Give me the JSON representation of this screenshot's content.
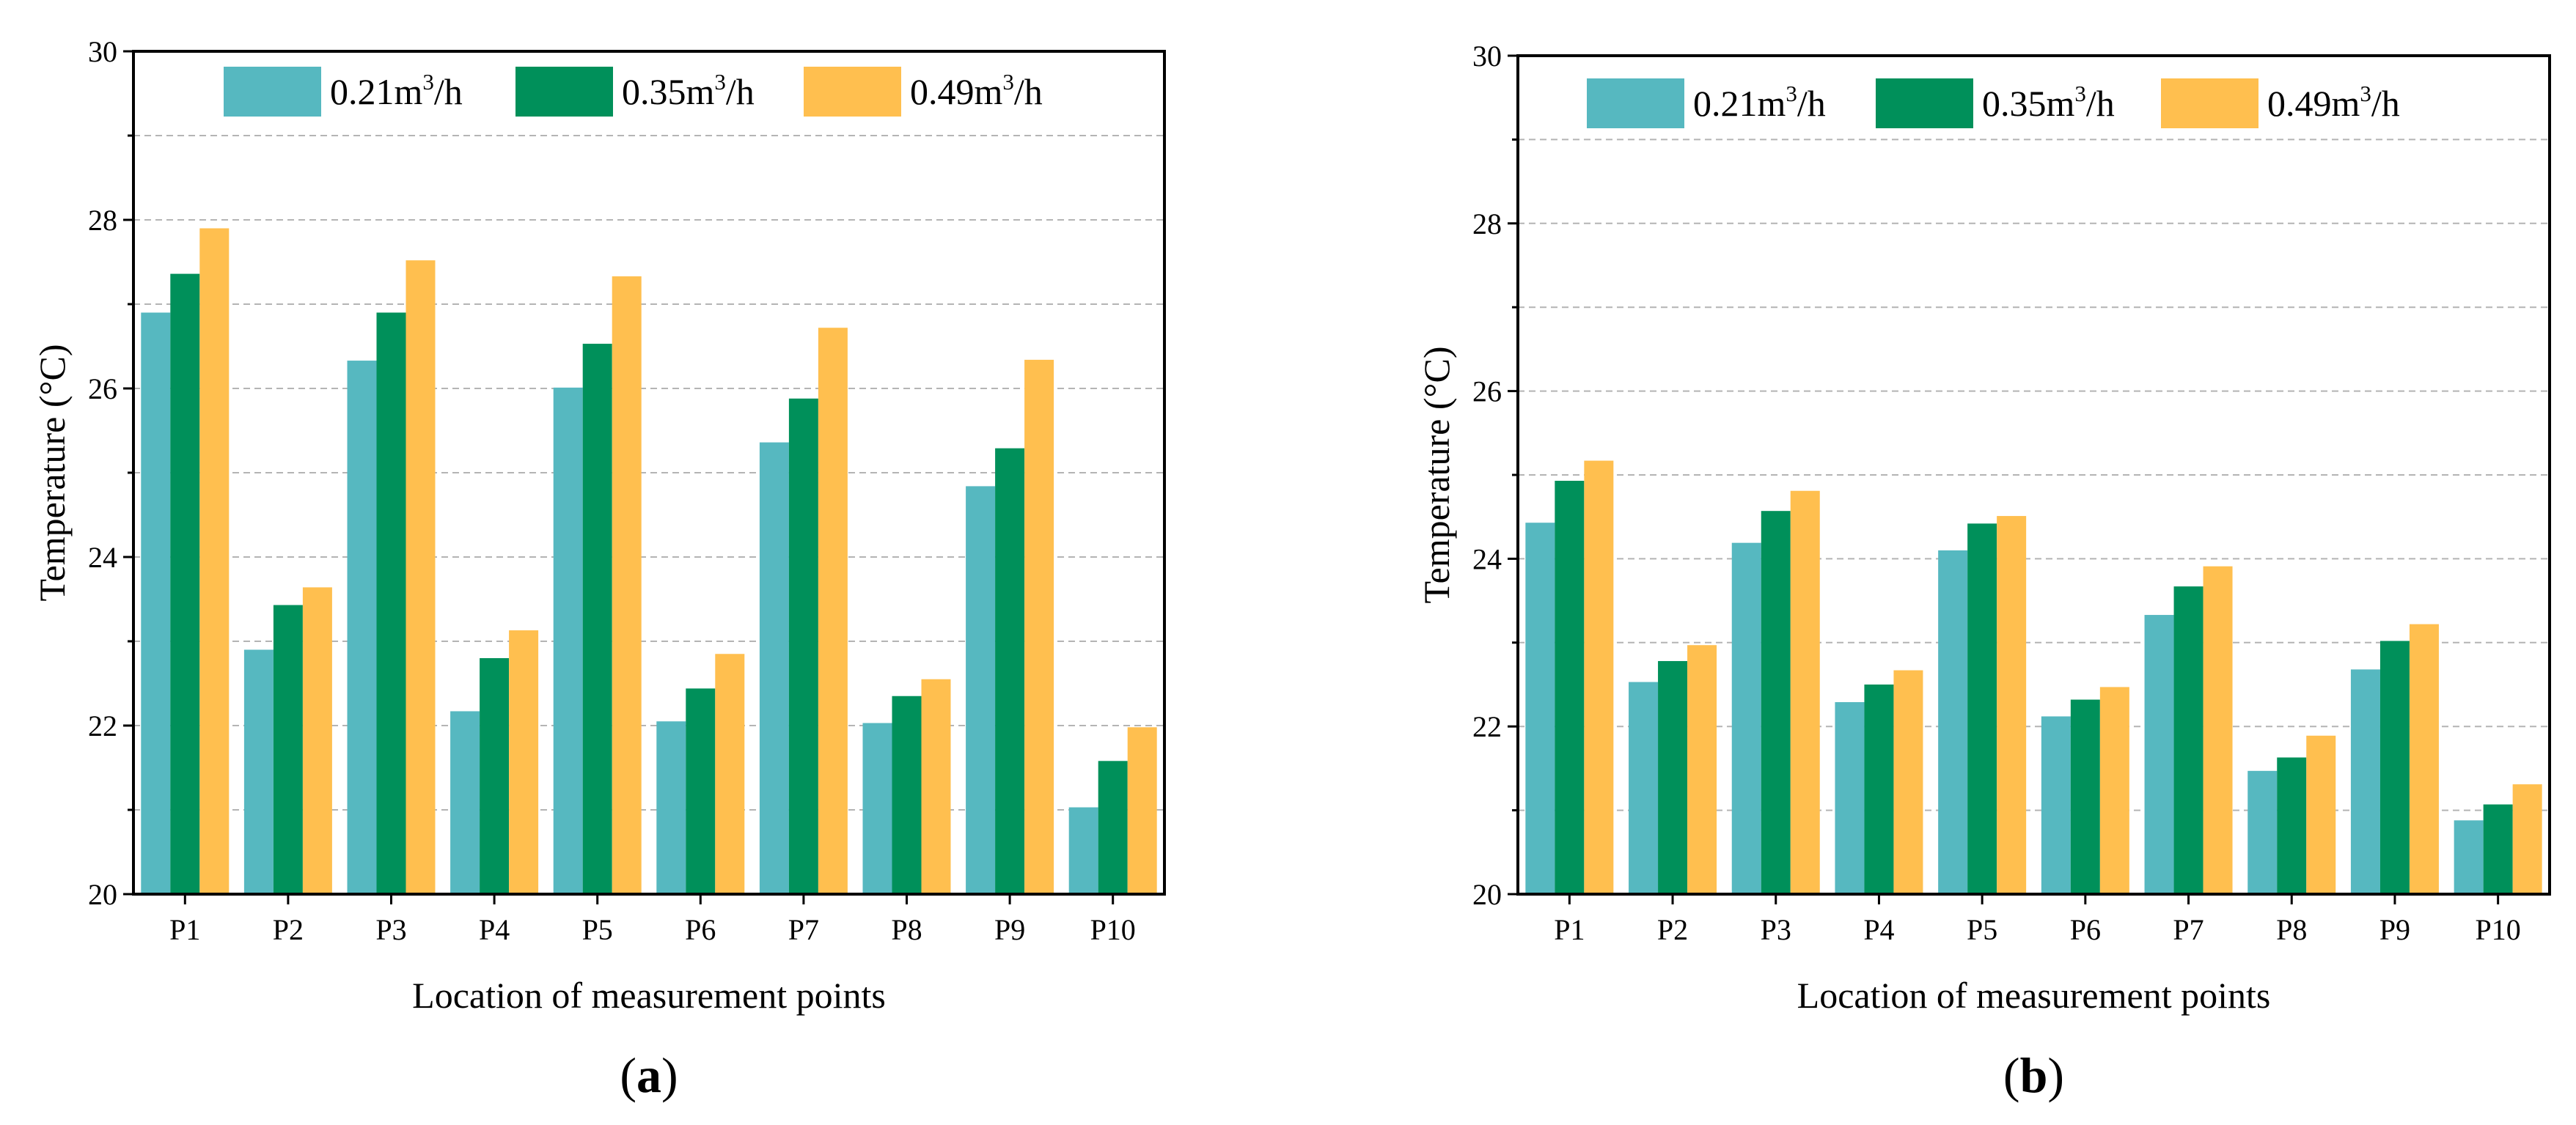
{
  "chart_data": [
    {
      "type": "bar",
      "panel_label": "(a)",
      "panel_letter": "a",
      "xlabel": "Location of measurement points",
      "ylabel": "Temperature (°C)",
      "ylim": [
        20,
        30
      ],
      "yticks": [
        20,
        22,
        24,
        26,
        28,
        30
      ],
      "grid": true,
      "legend_position": "top",
      "categories": [
        "P1",
        "P2",
        "P3",
        "P4",
        "P5",
        "P6",
        "P7",
        "P8",
        "P9",
        "P10"
      ],
      "series": [
        {
          "name": "0.21m3/h",
          "label_main": "0.21m",
          "label_sup": "3",
          "label_tail": "/h",
          "color": "#56B8C0",
          "values": [
            26.9,
            22.9,
            26.33,
            22.17,
            26.01,
            22.05,
            25.36,
            22.03,
            24.84,
            21.03
          ]
        },
        {
          "name": "0.35m3/h",
          "label_main": "0.35m",
          "label_sup": "3",
          "label_tail": "/h",
          "color": "#00905A",
          "values": [
            27.36,
            23.43,
            26.9,
            22.8,
            26.53,
            22.44,
            25.88,
            22.35,
            25.29,
            21.58
          ]
        },
        {
          "name": "0.49m3/h",
          "label_main": "0.49m",
          "label_sup": "3",
          "label_tail": "/h",
          "color": "#FFBF4F",
          "values": [
            27.9,
            23.64,
            27.52,
            23.13,
            27.33,
            22.85,
            26.72,
            22.55,
            26.34,
            21.98
          ]
        }
      ]
    },
    {
      "type": "bar",
      "panel_label": "(b)",
      "panel_letter": "b",
      "xlabel": "Location of measurement points",
      "ylabel": "Temperature (°C)",
      "ylim": [
        20,
        30
      ],
      "yticks": [
        20,
        22,
        24,
        26,
        28,
        30
      ],
      "grid": true,
      "legend_position": "top",
      "categories": [
        "P1",
        "P2",
        "P3",
        "P4",
        "P5",
        "P6",
        "P7",
        "P8",
        "P9",
        "P10"
      ],
      "series": [
        {
          "name": "0.21m3/h",
          "label_main": "0.21m",
          "label_sup": "3",
          "label_tail": "/h",
          "color": "#56B8C0",
          "values": [
            24.43,
            22.53,
            24.19,
            22.29,
            24.1,
            22.12,
            23.33,
            21.47,
            22.68,
            20.88
          ]
        },
        {
          "name": "0.35m3/h",
          "label_main": "0.35m",
          "label_sup": "3",
          "label_tail": "/h",
          "color": "#00905A",
          "values": [
            24.93,
            22.78,
            24.57,
            22.5,
            24.42,
            22.32,
            23.67,
            21.63,
            23.02,
            21.07
          ]
        },
        {
          "name": "0.49m3/h",
          "label_main": "0.49m",
          "label_sup": "3",
          "label_tail": "/h",
          "color": "#FFBF4F",
          "values": [
            25.17,
            22.97,
            24.81,
            22.67,
            24.51,
            22.47,
            23.91,
            21.89,
            23.22,
            21.31
          ]
        }
      ]
    }
  ]
}
